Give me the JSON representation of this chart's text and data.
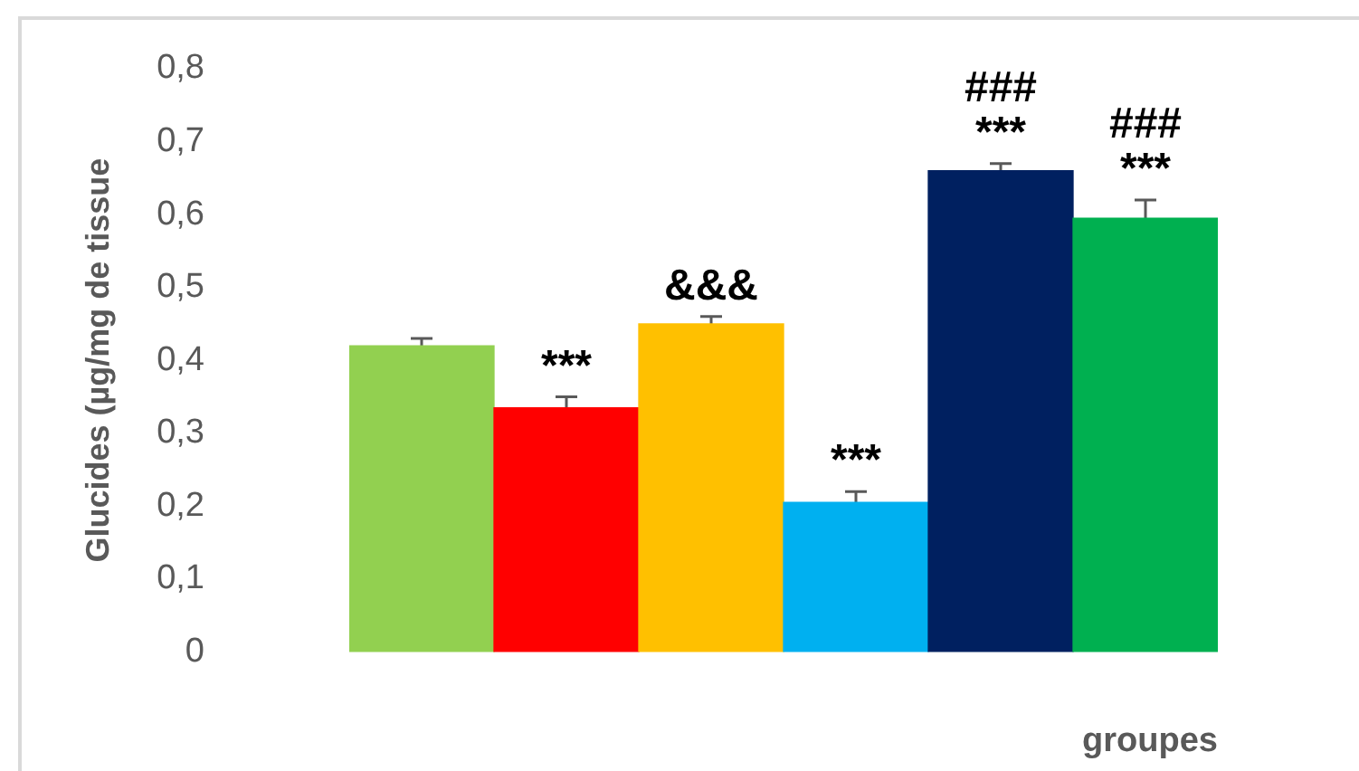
{
  "chart_data": {
    "type": "bar",
    "categories": [
      null,
      null,
      null,
      null,
      null,
      null
    ],
    "values": [
      0.42,
      0.335,
      0.45,
      0.205,
      0.66,
      0.595
    ],
    "colors": [
      "#92d050",
      "#ff0000",
      "#ffc000",
      "#00b0f0",
      "#002060",
      "#00b050"
    ],
    "errors": [
      0.01,
      0.015,
      0.01,
      0.015,
      0.01,
      0.025
    ],
    "value_labels": [
      null,
      "***",
      "&&&",
      "***",
      "###\n***",
      "###\n***"
    ],
    "xlabel": "groupes",
    "ylabel": "Glucides (µg/mg de tissue",
    "ylim": [
      0,
      0.8
    ],
    "yticks": [
      0,
      {
        "value": 0.1,
        "label": "0,1"
      },
      {
        "value": 0.2,
        "label": "0,2"
      },
      {
        "value": 0.3,
        "label": "0,3"
      },
      {
        "value": 0.4,
        "label": "0,4"
      },
      {
        "value": 0.5,
        "label": "0,5"
      },
      {
        "value": 0.6,
        "label": "0,6"
      },
      {
        "value": 0.7,
        "label": "0,7"
      },
      {
        "value": 0.8,
        "label": "0,8"
      }
    ],
    "tick_labels": "y",
    "grid": false,
    "legend": false
  }
}
